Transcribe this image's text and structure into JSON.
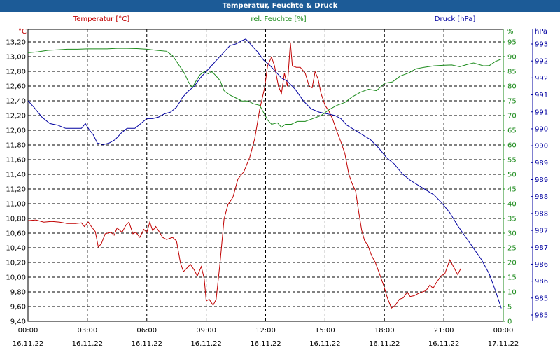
{
  "window": {
    "title": "Temperatur, Feuchte & Druck"
  },
  "colors": {
    "temperature": "#c00000",
    "humidity": "#1a8a1a",
    "pressure": "#0000a0",
    "grid": "#000000",
    "title_bar": "#1c5b97"
  },
  "chart_data": {
    "type": "line",
    "title": "Temperatur, Feuchte & Druck",
    "grid": true,
    "x": {
      "range_hours": [
        0,
        24
      ],
      "ticks": [
        {
          "time": "00:00",
          "date": "16.11.22"
        },
        {
          "time": "03:00",
          "date": "16.11.22"
        },
        {
          "time": "06:00",
          "date": "16.11.22"
        },
        {
          "time": "09:00",
          "date": "16.11.22"
        },
        {
          "time": "12:00",
          "date": "16.11.22"
        },
        {
          "time": "15:00",
          "date": "16.11.22"
        },
        {
          "time": "18:00",
          "date": "16.11.22"
        },
        {
          "time": "21:00",
          "date": "16.11.22"
        },
        {
          "time": "00:00",
          "date": "17.11.22"
        }
      ]
    },
    "axes": {
      "temperature": {
        "label": "Temperatur [°C]",
        "unit": "°C",
        "ylim": [
          9.4,
          13.4
        ],
        "ticks": [
          "13,20",
          "13,00",
          "12,80",
          "12,60",
          "12,40",
          "12,20",
          "12,00",
          "11,80",
          "11,60",
          "11,40",
          "11,20",
          "11,00",
          "10,80",
          "10,60",
          "10,40",
          "10,20",
          "10,00",
          "9,80",
          "9,60",
          "9,40"
        ]
      },
      "humidity": {
        "label": "rel. Feuchte [%]",
        "unit": "%",
        "ylim": [
          0,
          100
        ],
        "ticks": [
          "95",
          "90",
          "85",
          "80",
          "75",
          "70",
          "65",
          "60",
          "55",
          "50",
          "45",
          "40",
          "35",
          "30",
          "25",
          "20",
          "15",
          "10",
          "5",
          "0"
        ]
      },
      "pressure": {
        "label": "Druck [hPa]",
        "unit": "hPa",
        "ylim": [
          984.5,
          993.5
        ],
        "ticks": [
          "993",
          "992",
          "992",
          "991",
          "991",
          "990",
          "990",
          "989",
          "989",
          "988",
          "988",
          "987",
          "987",
          "986",
          "986",
          "985",
          "985"
        ]
      }
    },
    "series": [
      {
        "name": "Temperatur [°C]",
        "axis": "temperature",
        "points": [
          [
            0,
            10.78
          ],
          [
            0.4,
            10.79
          ],
          [
            0.8,
            10.76
          ],
          [
            1.2,
            10.77
          ],
          [
            1.6,
            10.76
          ],
          [
            2.0,
            10.74
          ],
          [
            2.4,
            10.74
          ],
          [
            2.7,
            10.75
          ],
          [
            2.85,
            10.7
          ],
          [
            3.05,
            10.76
          ],
          [
            3.2,
            10.7
          ],
          [
            3.4,
            10.63
          ],
          [
            3.55,
            10.42
          ],
          [
            3.7,
            10.46
          ],
          [
            3.9,
            10.6
          ],
          [
            4.2,
            10.62
          ],
          [
            4.35,
            10.58
          ],
          [
            4.5,
            10.68
          ],
          [
            4.75,
            10.62
          ],
          [
            4.95,
            10.72
          ],
          [
            5.1,
            10.76
          ],
          [
            5.3,
            10.6
          ],
          [
            5.45,
            10.62
          ],
          [
            5.65,
            10.55
          ],
          [
            5.85,
            10.66
          ],
          [
            6.0,
            10.62
          ],
          [
            6.15,
            10.76
          ],
          [
            6.3,
            10.64
          ],
          [
            6.45,
            10.7
          ],
          [
            6.6,
            10.64
          ],
          [
            6.8,
            10.55
          ],
          [
            7.0,
            10.52
          ],
          [
            7.3,
            10.55
          ],
          [
            7.5,
            10.5
          ],
          [
            7.7,
            10.2
          ],
          [
            7.85,
            10.08
          ],
          [
            8.0,
            10.12
          ],
          [
            8.2,
            10.18
          ],
          [
            8.4,
            10.1
          ],
          [
            8.55,
            10.02
          ],
          [
            8.75,
            10.15
          ],
          [
            8.9,
            9.98
          ],
          [
            9.0,
            9.68
          ],
          [
            9.15,
            9.7
          ],
          [
            9.35,
            9.62
          ],
          [
            9.5,
            9.7
          ],
          [
            9.7,
            10.2
          ],
          [
            9.9,
            10.8
          ],
          [
            10.1,
            11.0
          ],
          [
            10.35,
            11.1
          ],
          [
            10.6,
            11.35
          ],
          [
            10.9,
            11.45
          ],
          [
            11.2,
            11.65
          ],
          [
            11.45,
            11.9
          ],
          [
            11.7,
            12.3
          ],
          [
            11.95,
            12.6
          ],
          [
            12.1,
            12.9
          ],
          [
            12.3,
            13.02
          ],
          [
            12.45,
            12.9
          ],
          [
            12.65,
            12.62
          ],
          [
            12.8,
            12.52
          ],
          [
            12.95,
            12.8
          ],
          [
            13.1,
            12.62
          ],
          [
            13.25,
            13.22
          ],
          [
            13.35,
            12.9
          ],
          [
            13.55,
            12.88
          ],
          [
            13.75,
            12.88
          ],
          [
            14.0,
            12.8
          ],
          [
            14.2,
            12.62
          ],
          [
            14.35,
            12.6
          ],
          [
            14.5,
            12.82
          ],
          [
            14.65,
            12.72
          ],
          [
            14.8,
            12.52
          ],
          [
            15.0,
            12.36
          ],
          [
            15.2,
            12.28
          ],
          [
            15.4,
            12.16
          ],
          [
            15.6,
            12.0
          ],
          [
            15.8,
            11.86
          ],
          [
            16.0,
            11.7
          ],
          [
            16.2,
            11.42
          ],
          [
            16.35,
            11.3
          ],
          [
            16.55,
            11.18
          ],
          [
            16.7,
            10.9
          ],
          [
            16.85,
            10.65
          ],
          [
            17.0,
            10.5
          ],
          [
            17.15,
            10.45
          ],
          [
            17.35,
            10.3
          ],
          [
            17.55,
            10.2
          ],
          [
            17.75,
            10.05
          ],
          [
            17.95,
            9.9
          ],
          [
            18.15,
            9.72
          ],
          [
            18.35,
            9.58
          ],
          [
            18.55,
            9.62
          ],
          [
            18.75,
            9.7
          ],
          [
            18.95,
            9.72
          ],
          [
            19.15,
            9.8
          ],
          [
            19.3,
            9.74
          ],
          [
            19.5,
            9.75
          ],
          [
            19.7,
            9.78
          ],
          [
            19.9,
            9.8
          ],
          [
            20.1,
            9.82
          ],
          [
            20.3,
            9.9
          ],
          [
            20.45,
            9.85
          ],
          [
            20.6,
            9.92
          ],
          [
            20.85,
            10.02
          ],
          [
            21.05,
            10.05
          ],
          [
            21.3,
            10.24
          ],
          [
            21.5,
            10.14
          ],
          [
            21.7,
            10.04
          ],
          [
            21.85,
            10.12
          ]
        ]
      },
      {
        "name": "rel. Feuchte [%]",
        "axis": "humidity",
        "points": [
          [
            0,
            92.0
          ],
          [
            0.5,
            92.3
          ],
          [
            1.0,
            92.8
          ],
          [
            1.5,
            93.0
          ],
          [
            2.0,
            93.2
          ],
          [
            2.5,
            93.2
          ],
          [
            3.0,
            93.3
          ],
          [
            3.5,
            93.3
          ],
          [
            4.0,
            93.3
          ],
          [
            4.5,
            93.5
          ],
          [
            5.0,
            93.5
          ],
          [
            5.5,
            93.4
          ],
          [
            6.0,
            93.2
          ],
          [
            6.5,
            92.8
          ],
          [
            7.0,
            92.5
          ],
          [
            7.3,
            91.0
          ],
          [
            7.6,
            88.0
          ],
          [
            7.9,
            85.0
          ],
          [
            8.1,
            82.0
          ],
          [
            8.3,
            80.0
          ],
          [
            8.5,
            82.5
          ],
          [
            8.7,
            84.5
          ],
          [
            8.9,
            85.5
          ],
          [
            9.1,
            84.8
          ],
          [
            9.3,
            85.5
          ],
          [
            9.5,
            84.0
          ],
          [
            9.7,
            82.5
          ],
          [
            9.9,
            79.0
          ],
          [
            10.2,
            77.5
          ],
          [
            10.5,
            76.5
          ],
          [
            10.8,
            75.5
          ],
          [
            11.1,
            75.5
          ],
          [
            11.4,
            74.5
          ],
          [
            11.7,
            74.0
          ],
          [
            11.9,
            71.5
          ],
          [
            12.1,
            69.0
          ],
          [
            12.3,
            67.5
          ],
          [
            12.6,
            68.0
          ],
          [
            12.8,
            66.5
          ],
          [
            13.0,
            67.5
          ],
          [
            13.3,
            67.5
          ],
          [
            13.6,
            68.5
          ],
          [
            14.0,
            68.5
          ],
          [
            14.4,
            69.5
          ],
          [
            14.8,
            70.5
          ],
          [
            15.2,
            72.5
          ],
          [
            15.6,
            74.0
          ],
          [
            16.0,
            75.0
          ],
          [
            16.4,
            77.0
          ],
          [
            16.8,
            78.5
          ],
          [
            17.2,
            79.5
          ],
          [
            17.6,
            79.0
          ],
          [
            18.0,
            81.5
          ],
          [
            18.4,
            82.0
          ],
          [
            18.8,
            84.0
          ],
          [
            19.2,
            85.0
          ],
          [
            19.6,
            86.5
          ],
          [
            20.0,
            87.0
          ],
          [
            20.5,
            87.5
          ],
          [
            21.0,
            87.7
          ],
          [
            21.4,
            87.8
          ],
          [
            21.8,
            87.2
          ],
          [
            22.2,
            88.0
          ],
          [
            22.5,
            88.5
          ],
          [
            23.0,
            87.5
          ],
          [
            23.3,
            87.6
          ],
          [
            23.6,
            89.0
          ],
          [
            23.9,
            89.8
          ]
        ]
      },
      {
        "name": "Druck [hPa]",
        "axis": "pressure",
        "points": [
          [
            0,
            991.3
          ],
          [
            0.3,
            991.1
          ],
          [
            0.7,
            990.8
          ],
          [
            1.1,
            990.6
          ],
          [
            1.5,
            990.55
          ],
          [
            1.9,
            990.45
          ],
          [
            2.3,
            990.45
          ],
          [
            2.7,
            990.45
          ],
          [
            2.9,
            990.6
          ],
          [
            3.1,
            990.4
          ],
          [
            3.3,
            990.25
          ],
          [
            3.5,
            990.0
          ],
          [
            3.8,
            989.95
          ],
          [
            4.1,
            990.0
          ],
          [
            4.4,
            990.1
          ],
          [
            4.7,
            990.3
          ],
          [
            5.0,
            990.45
          ],
          [
            5.4,
            990.45
          ],
          [
            5.7,
            990.6
          ],
          [
            6.0,
            990.75
          ],
          [
            6.3,
            990.75
          ],
          [
            6.6,
            990.8
          ],
          [
            6.9,
            990.9
          ],
          [
            7.2,
            990.95
          ],
          [
            7.5,
            991.1
          ],
          [
            7.8,
            991.4
          ],
          [
            8.1,
            991.6
          ],
          [
            8.4,
            991.75
          ],
          [
            8.7,
            992.0
          ],
          [
            9.0,
            992.2
          ],
          [
            9.3,
            992.4
          ],
          [
            9.6,
            992.6
          ],
          [
            9.9,
            992.8
          ],
          [
            10.2,
            993.0
          ],
          [
            10.5,
            993.05
          ],
          [
            10.8,
            993.15
          ],
          [
            11.0,
            993.2
          ],
          [
            11.3,
            993.0
          ],
          [
            11.6,
            992.8
          ],
          [
            11.9,
            992.55
          ],
          [
            12.2,
            992.4
          ],
          [
            12.5,
            992.2
          ],
          [
            12.8,
            992.0
          ],
          [
            13.1,
            991.9
          ],
          [
            13.5,
            991.65
          ],
          [
            13.9,
            991.3
          ],
          [
            14.3,
            991.05
          ],
          [
            14.7,
            990.95
          ],
          [
            15.1,
            990.9
          ],
          [
            15.5,
            990.85
          ],
          [
            15.8,
            990.75
          ],
          [
            16.1,
            990.55
          ],
          [
            16.5,
            990.4
          ],
          [
            16.9,
            990.25
          ],
          [
            17.3,
            990.1
          ],
          [
            17.7,
            989.85
          ],
          [
            18.1,
            989.55
          ],
          [
            18.5,
            989.35
          ],
          [
            18.9,
            989.05
          ],
          [
            19.3,
            988.85
          ],
          [
            19.7,
            988.7
          ],
          [
            20.1,
            988.55
          ],
          [
            20.5,
            988.4
          ],
          [
            20.9,
            988.15
          ],
          [
            21.3,
            987.85
          ],
          [
            21.7,
            987.45
          ],
          [
            22.1,
            987.1
          ],
          [
            22.5,
            986.75
          ],
          [
            22.9,
            986.4
          ],
          [
            23.3,
            985.95
          ],
          [
            23.6,
            985.45
          ],
          [
            23.9,
            984.9
          ]
        ]
      }
    ]
  }
}
